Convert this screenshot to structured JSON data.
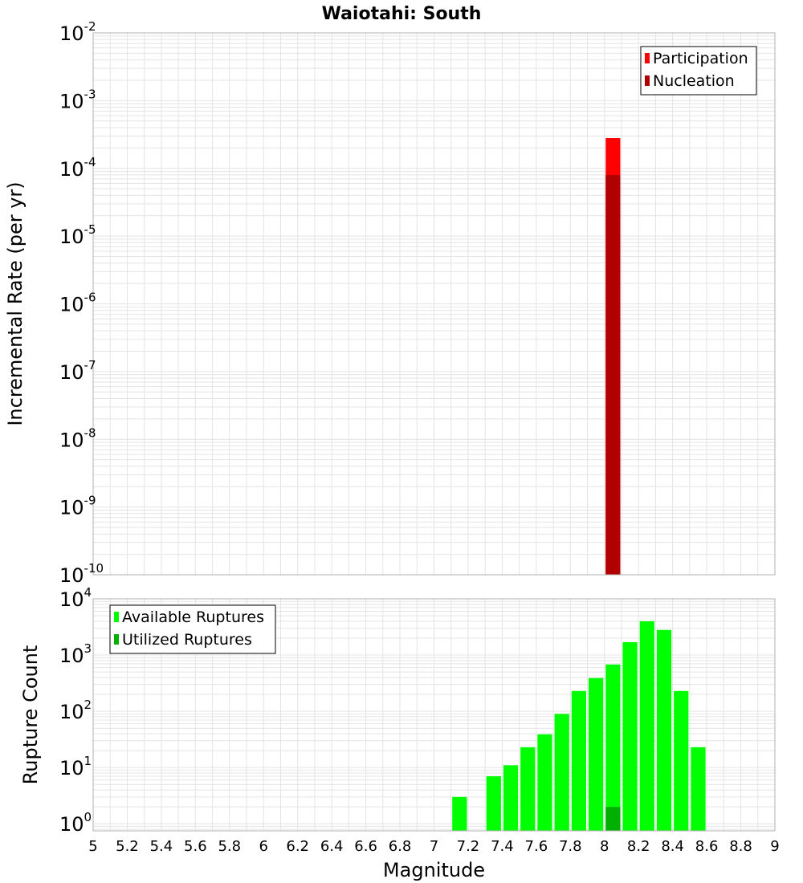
{
  "title": "Waiotahi: South",
  "colors": {
    "participation": "#ff0000",
    "nucleation": "#b00000",
    "available": "#00ff00",
    "utilized": "#00b000",
    "grid": "#e4e4e4",
    "frame": "#b0b0b0"
  },
  "chart_data": [
    {
      "type": "bar",
      "name": "incremental-rate-panel",
      "ylabel": "Incremental Rate (per yr)",
      "yscale": "log",
      "ylim": [
        1e-10,
        0.01
      ],
      "xlim": [
        5,
        9
      ],
      "bin_width": 0.1,
      "grid": true,
      "legend_position": "top-right",
      "y_ticks": [
        {
          "base": "10",
          "exp": "-10",
          "value": 1e-10
        },
        {
          "base": "10",
          "exp": "-9",
          "value": 1e-09
        },
        {
          "base": "10",
          "exp": "-8",
          "value": 1e-08
        },
        {
          "base": "10",
          "exp": "-7",
          "value": 1e-07
        },
        {
          "base": "10",
          "exp": "-6",
          "value": 1e-06
        },
        {
          "base": "10",
          "exp": "-5",
          "value": 1e-05
        },
        {
          "base": "10",
          "exp": "-4",
          "value": 0.0001
        },
        {
          "base": "10",
          "exp": "-3",
          "value": 0.001
        },
        {
          "base": "10",
          "exp": "-2",
          "value": 0.01
        }
      ],
      "series": [
        {
          "name": "Participation",
          "color_key": "participation",
          "x": [
            8.05
          ],
          "values": [
            0.00028
          ]
        },
        {
          "name": "Nucleation",
          "color_key": "nucleation",
          "x": [
            8.05
          ],
          "values": [
            8e-05
          ]
        }
      ]
    },
    {
      "type": "bar",
      "name": "rupture-count-panel",
      "ylabel": "Rupture Count",
      "xlabel": "Magnitude",
      "yscale": "log",
      "ylim": [
        0.75,
        10000
      ],
      "xlim": [
        5,
        9
      ],
      "bin_width": 0.1,
      "grid": true,
      "legend_position": "top-left",
      "x_ticks": [
        "5",
        "5.2",
        "5.4",
        "5.6",
        "5.8",
        "6",
        "6.2",
        "6.4",
        "6.6",
        "6.8",
        "7",
        "7.2",
        "7.4",
        "7.6",
        "7.8",
        "8",
        "8.2",
        "8.4",
        "8.6",
        "8.8",
        "9"
      ],
      "y_ticks": [
        {
          "base": "10",
          "exp": "0",
          "value": 1
        },
        {
          "base": "10",
          "exp": "1",
          "value": 10
        },
        {
          "base": "10",
          "exp": "2",
          "value": 100
        },
        {
          "base": "10",
          "exp": "3",
          "value": 1000
        },
        {
          "base": "10",
          "exp": "4",
          "value": 10000
        }
      ],
      "series": [
        {
          "name": "Available Ruptures",
          "color_key": "available",
          "x": [
            7.15,
            7.35,
            7.45,
            7.55,
            7.65,
            7.75,
            7.85,
            7.95,
            8.05,
            8.15,
            8.25,
            8.35,
            8.45,
            8.55
          ],
          "values": [
            3,
            7,
            11,
            23,
            39,
            90,
            230,
            390,
            680,
            1700,
            4000,
            2800,
            230,
            23
          ]
        },
        {
          "name": "Utilized Ruptures",
          "color_key": "utilized",
          "x": [
            8.05
          ],
          "values": [
            2
          ]
        }
      ]
    }
  ]
}
